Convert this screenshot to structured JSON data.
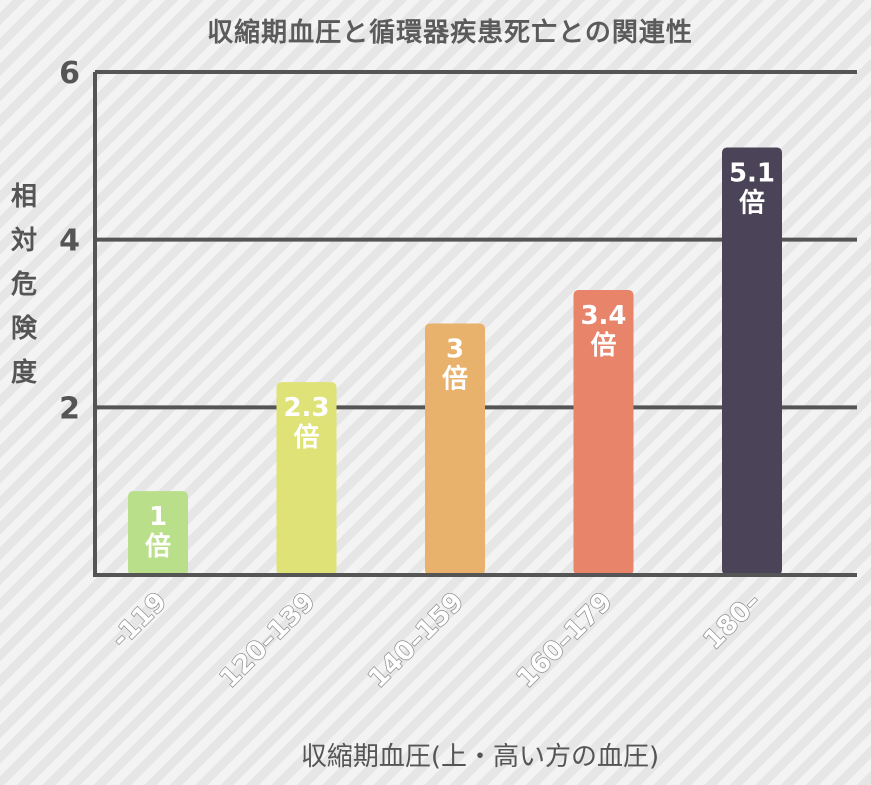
{
  "chart_data": {
    "type": "bar",
    "title": "収縮期血圧と循環器疾患死亡との関連性",
    "xlabel": "収縮期血圧(上・高い方の血圧)",
    "ylabel": "相対危険度",
    "ylim": [
      0,
      6
    ],
    "yticks": [
      "2",
      "4",
      "6"
    ],
    "grid": true,
    "categories": [
      "-119",
      "120–139",
      "140–159",
      "160–179",
      "180–"
    ],
    "values": [
      1,
      2.3,
      3,
      3.4,
      5.1
    ],
    "data_labels": [
      "1\n倍",
      "2.3\n倍",
      "3\n倍",
      "3.4\n倍",
      "5.1\n倍"
    ],
    "colors": [
      "#b9df8a",
      "#dfe277",
      "#e8b16c",
      "#e7846a",
      "#4b4458"
    ]
  }
}
